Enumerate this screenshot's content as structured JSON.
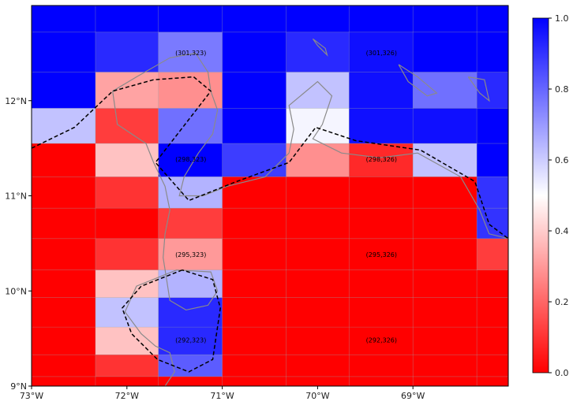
{
  "chart_data": {
    "type": "heatmap",
    "colormap": "bwr_r",
    "color_min": "#ff0000",
    "color_mid": "#ffffff",
    "color_max": "#0000ff",
    "value_range": [
      0,
      1
    ],
    "longitude_range": [
      -73,
      -68
    ],
    "latitude_range": [
      9,
      13
    ],
    "x_ticks": [
      {
        "value": -73,
        "label": "73°W"
      },
      {
        "value": -72,
        "label": "72°W"
      },
      {
        "value": -71,
        "label": "71°W"
      },
      {
        "value": -70,
        "label": "70°W"
      },
      {
        "value": -69,
        "label": "69°W"
      }
    ],
    "y_ticks": [
      {
        "value": 9,
        "label": "9°N"
      },
      {
        "value": 10,
        "label": "10°N"
      },
      {
        "value": 11,
        "label": "11°N"
      },
      {
        "value": 12,
        "label": "12°N"
      }
    ],
    "lon_edges": [
      -73,
      -72.33,
      -71.67,
      -71,
      -70.33,
      -69.67,
      -69,
      -68.33,
      -68
    ],
    "lat_edges": [
      13,
      12.72,
      12.3,
      11.92,
      11.55,
      11.2,
      10.87,
      10.55,
      10.22,
      9.93,
      9.62,
      9.33,
      9.1,
      9
    ],
    "grid_values": [
      [
        1.0,
        1.0,
        1.0,
        1.0,
        1.0,
        1.0,
        1.0,
        1.0
      ],
      [
        1.0,
        0.92,
        0.76,
        1.0,
        0.92,
        0.97,
        1.0,
        1.0
      ],
      [
        1.0,
        0.32,
        0.28,
        1.0,
        0.62,
        0.97,
        0.78,
        0.92
      ],
      [
        0.62,
        0.12,
        0.78,
        1.0,
        0.52,
        0.97,
        0.97,
        1.0
      ],
      [
        0.0,
        0.38,
        1.0,
        0.88,
        0.28,
        0.08,
        0.62,
        1.0
      ],
      [
        0.0,
        0.1,
        0.65,
        0.0,
        0.0,
        0.0,
        0.0,
        0.9
      ],
      [
        0.0,
        0.0,
        0.12,
        0.0,
        0.0,
        0.0,
        0.0,
        0.9
      ],
      [
        0.0,
        0.1,
        0.3,
        0.0,
        0.0,
        0.0,
        0.0,
        0.12
      ],
      [
        0.0,
        0.38,
        0.65,
        0.0,
        0.0,
        0.0,
        0.0,
        0.0
      ],
      [
        0.0,
        0.62,
        0.92,
        0.0,
        0.0,
        0.0,
        0.0,
        0.0
      ],
      [
        0.0,
        0.38,
        0.92,
        0.0,
        0.0,
        0.0,
        0.0,
        0.0
      ],
      [
        0.0,
        0.1,
        0.82,
        0.0,
        0.0,
        0.0,
        0.0,
        0.0
      ],
      [
        0.0,
        0.0,
        0.0,
        0.0,
        0.0,
        0.0,
        0.0,
        0.0
      ]
    ],
    "cell_annotations": [
      {
        "text": "(301,323)",
        "lon": -71.33,
        "lat": 12.5
      },
      {
        "text": "(301,326)",
        "lon": -69.33,
        "lat": 12.5
      },
      {
        "text": "(298,323)",
        "lon": -71.33,
        "lat": 11.38
      },
      {
        "text": "(298,326)",
        "lon": -69.33,
        "lat": 11.38
      },
      {
        "text": "(295,323)",
        "lon": -71.33,
        "lat": 10.38
      },
      {
        "text": "(295,326)",
        "lon": -69.33,
        "lat": 10.38
      },
      {
        "text": "(292,323)",
        "lon": -71.33,
        "lat": 9.48
      },
      {
        "text": "(292,326)",
        "lon": -69.33,
        "lat": 9.48
      }
    ],
    "colorbar_ticks": [
      {
        "value": 0.0,
        "label": "0.0"
      },
      {
        "value": 0.2,
        "label": "0.2"
      },
      {
        "value": 0.4,
        "label": "0.4"
      },
      {
        "value": 0.6,
        "label": "0.6"
      },
      {
        "value": 0.8,
        "label": "0.8"
      },
      {
        "value": 1.0,
        "label": "1.0"
      }
    ],
    "boundary_polygons": [
      [
        [
          -73,
          11.5
        ],
        [
          -72.55,
          11.72
        ],
        [
          -72.15,
          12.1
        ],
        [
          -71.72,
          12.22
        ],
        [
          -71.3,
          12.25
        ],
        [
          -71.12,
          12.1
        ],
        [
          -71.7,
          11.35
        ],
        [
          -71.35,
          10.95
        ],
        [
          -70.85,
          11.15
        ],
        [
          -70.3,
          11.35
        ],
        [
          -70.02,
          11.72
        ],
        [
          -69.6,
          11.58
        ],
        [
          -68.92,
          11.48
        ],
        [
          -68.35,
          11.15
        ],
        [
          -68.2,
          10.7
        ],
        [
          -68.0,
          10.55
        ]
      ],
      [
        [
          -71.42,
          10.22
        ],
        [
          -71.85,
          10.05
        ],
        [
          -72.05,
          9.82
        ],
        [
          -71.95,
          9.55
        ],
        [
          -71.68,
          9.28
        ],
        [
          -71.35,
          9.15
        ],
        [
          -71.1,
          9.28
        ],
        [
          -71.02,
          9.82
        ],
        [
          -71.1,
          10.12
        ],
        [
          -71.42,
          10.22
        ]
      ]
    ],
    "coastlines": [
      [
        [
          -71.28,
          12.5
        ],
        [
          -71.55,
          12.45
        ],
        [
          -71.9,
          12.25
        ],
        [
          -72.15,
          12.1
        ],
        [
          -72.1,
          11.75
        ],
        [
          -71.8,
          11.55
        ],
        [
          -71.72,
          11.35
        ],
        [
          -71.6,
          11.1
        ],
        [
          -71.55,
          10.85
        ],
        [
          -71.6,
          10.6
        ],
        [
          -71.62,
          10.35
        ],
        [
          -71.58,
          10.1
        ],
        [
          -71.55,
          9.9
        ],
        [
          -71.38,
          9.8
        ],
        [
          -71.15,
          9.85
        ],
        [
          -71.05,
          10.0
        ],
        [
          -71.12,
          10.2
        ],
        [
          -71.48,
          10.22
        ],
        [
          -71.9,
          10.05
        ],
        [
          -72.02,
          9.78
        ],
        [
          -71.85,
          9.55
        ],
        [
          -71.7,
          9.42
        ],
        [
          -71.55,
          9.35
        ],
        [
          -71.5,
          9.15
        ],
        [
          -71.6,
          9.0
        ]
      ],
      [
        [
          -71.28,
          12.5
        ],
        [
          -71.15,
          12.3
        ],
        [
          -71.12,
          12.1
        ],
        [
          -71.05,
          11.9
        ],
        [
          -71.1,
          11.65
        ],
        [
          -71.25,
          11.45
        ],
        [
          -71.4,
          11.2
        ],
        [
          -71.45,
          11.0
        ],
        [
          -71.2,
          11.0
        ],
        [
          -70.95,
          11.1
        ],
        [
          -70.55,
          11.2
        ],
        [
          -70.3,
          11.45
        ],
        [
          -70.25,
          11.7
        ],
        [
          -70.3,
          11.95
        ],
        [
          -70.0,
          12.2
        ],
        [
          -69.85,
          12.05
        ],
        [
          -69.95,
          11.75
        ],
        [
          -70.05,
          11.6
        ],
        [
          -69.75,
          11.45
        ],
        [
          -69.35,
          11.4
        ],
        [
          -68.95,
          11.45
        ],
        [
          -68.5,
          11.2
        ],
        [
          -68.3,
          10.85
        ],
        [
          -68.2,
          10.6
        ],
        [
          -68.0,
          10.55
        ]
      ],
      [
        [
          -70.05,
          12.65
        ],
        [
          -69.92,
          12.55
        ],
        [
          -69.9,
          12.48
        ],
        [
          -70.0,
          12.58
        ],
        [
          -70.05,
          12.65
        ]
      ],
      [
        [
          -69.15,
          12.38
        ],
        [
          -68.95,
          12.25
        ],
        [
          -68.75,
          12.08
        ],
        [
          -68.85,
          12.05
        ],
        [
          -69.05,
          12.2
        ],
        [
          -69.15,
          12.38
        ]
      ],
      [
        [
          -68.42,
          12.25
        ],
        [
          -68.25,
          12.22
        ],
        [
          -68.2,
          12.0
        ],
        [
          -68.3,
          12.08
        ],
        [
          -68.42,
          12.25
        ]
      ]
    ],
    "grid": true,
    "colorbar": "right"
  }
}
